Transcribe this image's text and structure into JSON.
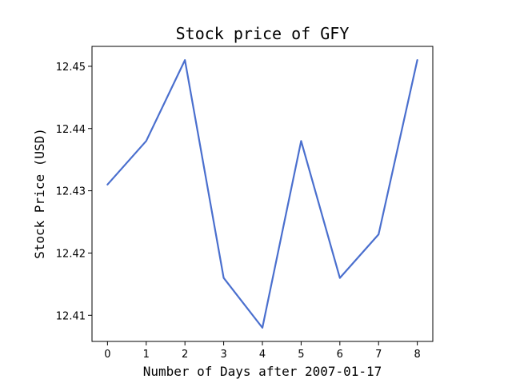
{
  "chart_data": {
    "type": "line",
    "title": "Stock price of GFY",
    "xlabel": "Number of Days after 2007-01-17",
    "ylabel": "Stock Price (USD)",
    "x": [
      0,
      1,
      2,
      3,
      4,
      5,
      6,
      7,
      8
    ],
    "series": [
      {
        "values": [
          12.431,
          12.438,
          12.451,
          12.416,
          12.408,
          12.438,
          12.416,
          12.423,
          12.451
        ],
        "color": "#4a6fce"
      }
    ],
    "xticks": [
      "0",
      "1",
      "2",
      "3",
      "4",
      "5",
      "6",
      "7",
      "8"
    ],
    "yticks": [
      "12.41",
      "12.42",
      "12.43",
      "12.44",
      "12.45"
    ],
    "xlim": [
      -0.4,
      8.4
    ],
    "ylim": [
      12.4058,
      12.4532
    ],
    "grid": false,
    "legend": false
  }
}
